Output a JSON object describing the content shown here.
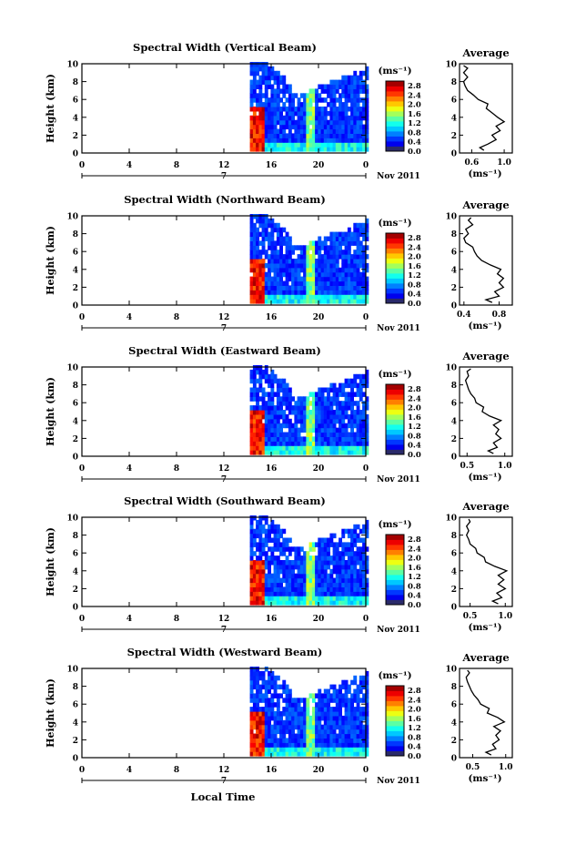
{
  "x_axis_label": "Local Time",
  "chart_data": [
    {
      "type": "heatmap",
      "title": "Spectral Width (Vertical Beam)",
      "ylabel": "Height (km)",
      "xlabel": "Local Time",
      "ylim": [
        0,
        10
      ],
      "xlim": [
        0,
        24
      ],
      "x_ticks": [
        "0",
        "4",
        "8",
        "12",
        "16",
        "20",
        "0"
      ],
      "y_ticks": [
        "0",
        "2",
        "4",
        "6",
        "8",
        "10"
      ],
      "date_marker": "7",
      "date_label": "Nov 2011",
      "colorbar": {
        "unit": "(ms⁻¹)",
        "ticks": [
          "0.0",
          "0.4",
          "0.8",
          "1.2",
          "1.6",
          "2.0",
          "2.4",
          "2.8"
        ],
        "range": [
          0,
          3.0
        ]
      },
      "data_start_hour": 14.2,
      "average_profile": {
        "title": "Average",
        "xlabel": "(ms⁻¹)",
        "x_ticks": [
          "0.6",
          "1.0"
        ],
        "xlim": [
          0.45,
          1.1
        ],
        "y_ticks": [
          "0",
          "2",
          "4",
          "6",
          "8",
          "10"
        ],
        "height_km": [
          0.3,
          0.6,
          1.0,
          1.5,
          2.0,
          2.5,
          3.0,
          3.5,
          4.0,
          4.5,
          5.0,
          5.5,
          6.0,
          6.5,
          7.0,
          7.5,
          8.0,
          8.5,
          9.0,
          9.5,
          9.8
        ],
        "value": [
          0.75,
          0.7,
          0.8,
          0.9,
          0.85,
          0.95,
          0.9,
          1.0,
          0.92,
          0.85,
          0.78,
          0.8,
          0.68,
          0.62,
          0.55,
          0.52,
          0.5,
          0.55,
          0.5,
          0.55,
          0.5
        ]
      }
    },
    {
      "type": "heatmap",
      "title": "Spectral Width (Northward Beam)",
      "ylabel": "Height (km)",
      "xlabel": "Local Time",
      "ylim": [
        0,
        10
      ],
      "xlim": [
        0,
        24
      ],
      "x_ticks": [
        "0",
        "4",
        "8",
        "12",
        "16",
        "20",
        "0"
      ],
      "y_ticks": [
        "0",
        "2",
        "4",
        "6",
        "8",
        "10"
      ],
      "date_marker": "7",
      "date_label": "Nov 2011",
      "colorbar": {
        "unit": "(ms⁻¹)",
        "ticks": [
          "0.0",
          "0.4",
          "0.8",
          "1.2",
          "1.6",
          "2.0",
          "2.4",
          "2.8"
        ],
        "range": [
          0,
          3.0
        ]
      },
      "data_start_hour": 14.2,
      "average_profile": {
        "title": "Average",
        "xlabel": "(ms⁻¹)",
        "x_ticks": [
          "0.4",
          "0.8"
        ],
        "xlim": [
          0.35,
          0.95
        ],
        "y_ticks": [
          "0",
          "2",
          "4",
          "6",
          "8",
          "10"
        ],
        "height_km": [
          0.3,
          0.6,
          1.0,
          1.5,
          2.0,
          2.5,
          3.0,
          3.5,
          4.0,
          4.5,
          5.0,
          5.5,
          6.0,
          6.5,
          7.0,
          7.5,
          8.0,
          8.5,
          9.0,
          9.5,
          9.8
        ],
        "value": [
          0.72,
          0.65,
          0.8,
          0.75,
          0.85,
          0.8,
          0.85,
          0.78,
          0.82,
          0.7,
          0.6,
          0.55,
          0.52,
          0.5,
          0.42,
          0.4,
          0.45,
          0.42,
          0.5,
          0.45,
          0.48
        ]
      }
    },
    {
      "type": "heatmap",
      "title": "Spectral Width (Eastward Beam)",
      "ylabel": "Height (km)",
      "xlabel": "Local Time",
      "ylim": [
        0,
        10
      ],
      "xlim": [
        0,
        24
      ],
      "x_ticks": [
        "0",
        "4",
        "8",
        "12",
        "16",
        "20",
        "0"
      ],
      "y_ticks": [
        "0",
        "2",
        "4",
        "6",
        "8",
        "10"
      ],
      "date_marker": "7",
      "date_label": "Nov 2011",
      "colorbar": {
        "unit": "(ms⁻¹)",
        "ticks": [
          "0.0",
          "0.4",
          "0.8",
          "1.2",
          "1.6",
          "2.0",
          "2.4",
          "2.8"
        ],
        "range": [
          0,
          3.0
        ]
      },
      "data_start_hour": 14.2,
      "average_profile": {
        "title": "Average",
        "xlabel": "(ms⁻¹)",
        "x_ticks": [
          "0.5",
          "1.0"
        ],
        "xlim": [
          0.4,
          1.1
        ],
        "y_ticks": [
          "0",
          "2",
          "4",
          "6",
          "8",
          "10"
        ],
        "height_km": [
          0.3,
          0.6,
          1.0,
          1.5,
          2.0,
          2.5,
          3.0,
          3.5,
          4.0,
          4.5,
          5.0,
          5.5,
          6.0,
          6.5,
          7.0,
          7.5,
          8.0,
          8.5,
          9.0,
          9.5,
          9.8
        ],
        "value": [
          0.85,
          0.78,
          0.9,
          0.85,
          0.95,
          0.88,
          0.92,
          0.85,
          0.95,
          0.8,
          0.7,
          0.72,
          0.62,
          0.6,
          0.55,
          0.52,
          0.5,
          0.48,
          0.52,
          0.5,
          0.55
        ]
      }
    },
    {
      "type": "heatmap",
      "title": "Spectral Width (Southward Beam)",
      "ylabel": "Height (km)",
      "xlabel": "Local Time",
      "ylim": [
        0,
        10
      ],
      "xlim": [
        0,
        24
      ],
      "x_ticks": [
        "0",
        "4",
        "8",
        "12",
        "16",
        "20",
        "0"
      ],
      "y_ticks": [
        "0",
        "2",
        "4",
        "6",
        "8",
        "10"
      ],
      "date_marker": "7",
      "date_label": "Nov 2011",
      "colorbar": {
        "unit": "(ms⁻¹)",
        "ticks": [
          "0.0",
          "0.4",
          "0.8",
          "1.2",
          "1.6",
          "2.0",
          "2.4",
          "2.8"
        ],
        "range": [
          0,
          3.0
        ]
      },
      "data_start_hour": 14.2,
      "average_profile": {
        "title": "Average",
        "xlabel": "(ms⁻¹)",
        "x_ticks": [
          "0.5",
          "1.0"
        ],
        "xlim": [
          0.35,
          1.1
        ],
        "y_ticks": [
          "0",
          "2",
          "4",
          "6",
          "8",
          "10"
        ],
        "height_km": [
          0.3,
          0.6,
          1.0,
          1.5,
          2.0,
          2.5,
          3.0,
          3.5,
          4.0,
          4.5,
          5.0,
          5.5,
          6.0,
          6.5,
          7.0,
          7.5,
          8.0,
          8.5,
          9.0,
          9.5,
          9.8
        ],
        "value": [
          0.9,
          0.82,
          0.95,
          0.88,
          1.0,
          0.9,
          0.98,
          0.9,
          1.02,
          0.85,
          0.72,
          0.7,
          0.6,
          0.58,
          0.5,
          0.48,
          0.45,
          0.48,
          0.45,
          0.5,
          0.48
        ]
      }
    },
    {
      "type": "heatmap",
      "title": "Spectral Width (Westward Beam)",
      "ylabel": "Height (km)",
      "xlabel": "Local Time",
      "ylim": [
        0,
        10
      ],
      "xlim": [
        0,
        24
      ],
      "x_ticks": [
        "0",
        "4",
        "8",
        "12",
        "16",
        "20",
        "0"
      ],
      "y_ticks": [
        "0",
        "2",
        "4",
        "6",
        "8",
        "10"
      ],
      "date_marker": "7",
      "date_label": "Nov 2011",
      "colorbar": {
        "unit": "(ms⁻¹)",
        "ticks": [
          "0.0",
          "0.4",
          "0.8",
          "1.2",
          "1.6",
          "2.0",
          "2.4",
          "2.8"
        ],
        "range": [
          0,
          3.0
        ]
      },
      "data_start_hour": 14.2,
      "average_profile": {
        "title": "Average",
        "xlabel": "(ms⁻¹)",
        "x_ticks": [
          "0.5",
          "1.0"
        ],
        "xlim": [
          0.3,
          1.1
        ],
        "y_ticks": [
          "0",
          "2",
          "4",
          "6",
          "8",
          "10"
        ],
        "height_km": [
          0.3,
          0.6,
          1.0,
          1.5,
          2.0,
          2.5,
          3.0,
          3.5,
          4.0,
          4.5,
          5.0,
          5.5,
          6.0,
          6.5,
          7.0,
          7.5,
          8.0,
          8.5,
          9.0,
          9.5,
          9.8
        ],
        "value": [
          0.78,
          0.7,
          0.85,
          0.8,
          0.9,
          0.85,
          0.92,
          0.82,
          0.98,
          0.88,
          0.72,
          0.75,
          0.62,
          0.58,
          0.52,
          0.48,
          0.45,
          0.42,
          0.4,
          0.45,
          0.42
        ]
      }
    }
  ]
}
